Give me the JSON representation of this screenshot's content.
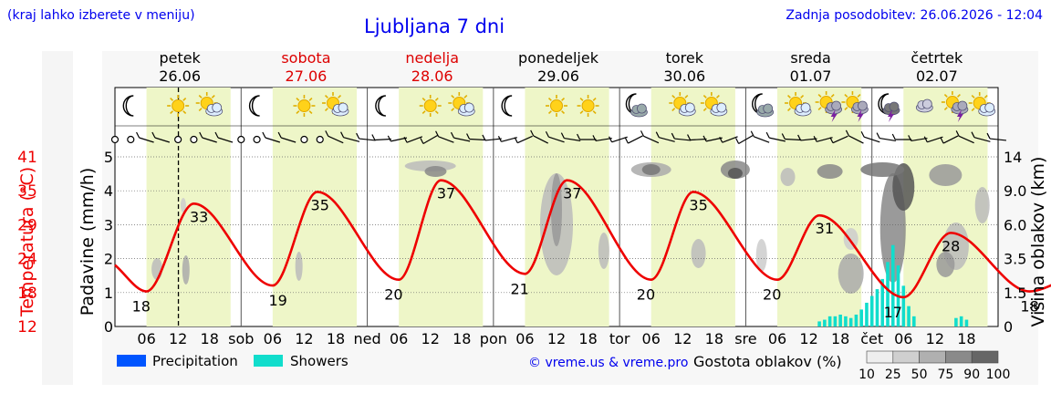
{
  "header": {
    "left_note": "(kraj lahko izberete v meniju)",
    "title": "Ljubljana 7 dni",
    "updated": "Zadnja posodobitev: 26.06.2026 - 12:04"
  },
  "days": [
    {
      "name": "petek",
      "date": "26.06",
      "weekend": false,
      "icons": [
        "moon-icon",
        "sun-icon",
        "sun-cloud-icon"
      ]
    },
    {
      "name": "sobota",
      "date": "27.06",
      "weekend": true,
      "icons": [
        "moon-icon",
        "sun-icon",
        "sun-cloud-icon"
      ]
    },
    {
      "name": "nedelja",
      "date": "28.06",
      "weekend": true,
      "icons": [
        "moon-icon",
        "sun-icon",
        "sun-cloud-icon"
      ]
    },
    {
      "name": "ponedeljek",
      "date": "29.06",
      "weekend": false,
      "icons": [
        "moon-icon",
        "sun-icon",
        "sun-icon"
      ]
    },
    {
      "name": "torek",
      "date": "30.06",
      "weekend": false,
      "icons": [
        "moon-cloud-icon",
        "sun-cloud-icon",
        "sun-cloud-icon"
      ]
    },
    {
      "name": "sreda",
      "date": "01.07",
      "weekend": false,
      "icons": [
        "moon-cloud-icon",
        "sun-cloud-icon",
        "thunderstorm-icon",
        "thunderstorm-icon"
      ]
    },
    {
      "name": "četrtek",
      "date": "02.07",
      "weekend": false,
      "icons": [
        "moon-thunder-icon",
        "cloud-icon",
        "thunderstorm-icon",
        "sun-cloud-icon"
      ]
    }
  ],
  "colors": {
    "text_blue": "#0000ee",
    "weekend_red": "#dd0000",
    "temperature": "#ee0000",
    "daylight": "#eef6c8",
    "precipitation": "#0055ff",
    "showers": "#11ddcc"
  },
  "chart_data": {
    "type": "line",
    "x_tick_labels": [
      "06",
      "12",
      "18",
      "sob",
      "06",
      "12",
      "18",
      "ned",
      "06",
      "12",
      "18",
      "pon",
      "06",
      "12",
      "18",
      "tor",
      "06",
      "12",
      "18",
      "sre",
      "06",
      "12",
      "18",
      "čet",
      "06",
      "12",
      "18"
    ],
    "left_axis": {
      "temperature_label": "Temperatura (°C)",
      "temperature_ticks": [
        12,
        18,
        24,
        29,
        35,
        41
      ],
      "precip_label": "Padavine (mm/h)",
      "precip_ticks": [
        0,
        1,
        2,
        3,
        4,
        5
      ],
      "precip_ylim": [
        0,
        5
      ]
    },
    "right_axis": {
      "label": "Višina oblakov (km)",
      "ticks": [
        "0",
        "1.5",
        "3.5",
        "6.0",
        "9.0",
        "14"
      ]
    },
    "temperature": {
      "name": "Temperatura",
      "x_hours": [
        0,
        6,
        15,
        30,
        38.5,
        54,
        62,
        78,
        86,
        102,
        110,
        126,
        134,
        150,
        159,
        174,
        182,
        194
      ],
      "values": [
        22.5,
        18,
        33,
        19,
        35,
        20,
        37,
        21,
        37,
        20,
        35,
        20,
        31,
        17,
        28,
        18,
        20,
        17
      ],
      "labels": [
        {
          "text": "18",
          "hour": 5
        },
        {
          "text": "33",
          "hour": 16
        },
        {
          "text": "19",
          "hour": 31
        },
        {
          "text": "35",
          "hour": 39
        },
        {
          "text": "20",
          "hour": 53
        },
        {
          "text": "37",
          "hour": 63
        },
        {
          "text": "21",
          "hour": 77
        },
        {
          "text": "37",
          "hour": 87
        },
        {
          "text": "20",
          "hour": 101
        },
        {
          "text": "35",
          "hour": 111
        },
        {
          "text": "20",
          "hour": 125
        },
        {
          "text": "31",
          "hour": 135
        },
        {
          "text": "17",
          "hour": 148
        },
        {
          "text": "28",
          "hour": 159
        },
        {
          "text": "18",
          "hour": 174
        }
      ]
    },
    "showers": {
      "name": "Showers",
      "x_hours": [
        134,
        135,
        136,
        137,
        138,
        139,
        140,
        141,
        142,
        143,
        144,
        145,
        146,
        147,
        148,
        149,
        150,
        151,
        152,
        160,
        161,
        162
      ],
      "values": [
        0.15,
        0.2,
        0.3,
        0.3,
        0.35,
        0.3,
        0.25,
        0.35,
        0.5,
        0.7,
        0.9,
        1.1,
        1.4,
        1.9,
        2.4,
        1.8,
        1.2,
        0.6,
        0.3,
        0.25,
        0.3,
        0.2
      ]
    },
    "precipitation": {
      "name": "Precipitation",
      "values": []
    },
    "legend": {
      "precip": "Precipitation",
      "showers": "Showers",
      "credit": "© vreme.us & vreme.pro",
      "density_title": "Gostota oblakov (%)",
      "density_ticks": [
        "10",
        "25",
        "50",
        "75",
        "90",
        "100"
      ]
    },
    "grid": true
  }
}
